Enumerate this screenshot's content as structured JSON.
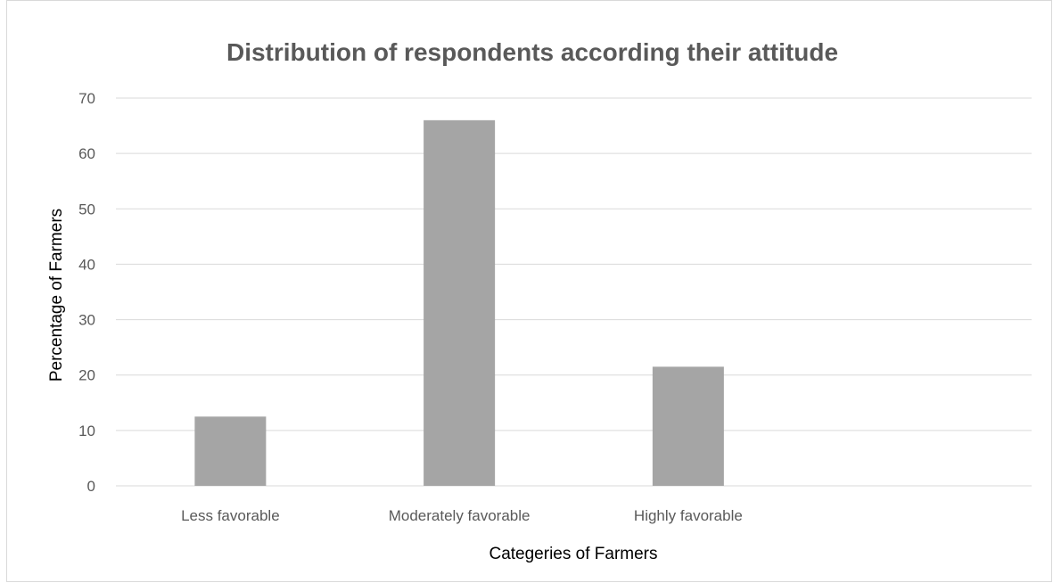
{
  "chart_data": {
    "type": "bar",
    "title": "Distribution of respondents according their attitude",
    "xlabel": "Categeries of Farmers",
    "ylabel": "Percentage of Farmers",
    "categories": [
      "Less favorable",
      "Moderately favorable",
      "Highly favorable"
    ],
    "values": [
      12.5,
      66,
      21.5
    ],
    "ylim": [
      0,
      70
    ],
    "yticks": [
      0,
      10,
      20,
      30,
      40,
      50,
      60,
      70
    ],
    "grid": true,
    "legend": "none",
    "bar_color": "#a5a5a5",
    "grid_color": "#d9d9d9"
  }
}
